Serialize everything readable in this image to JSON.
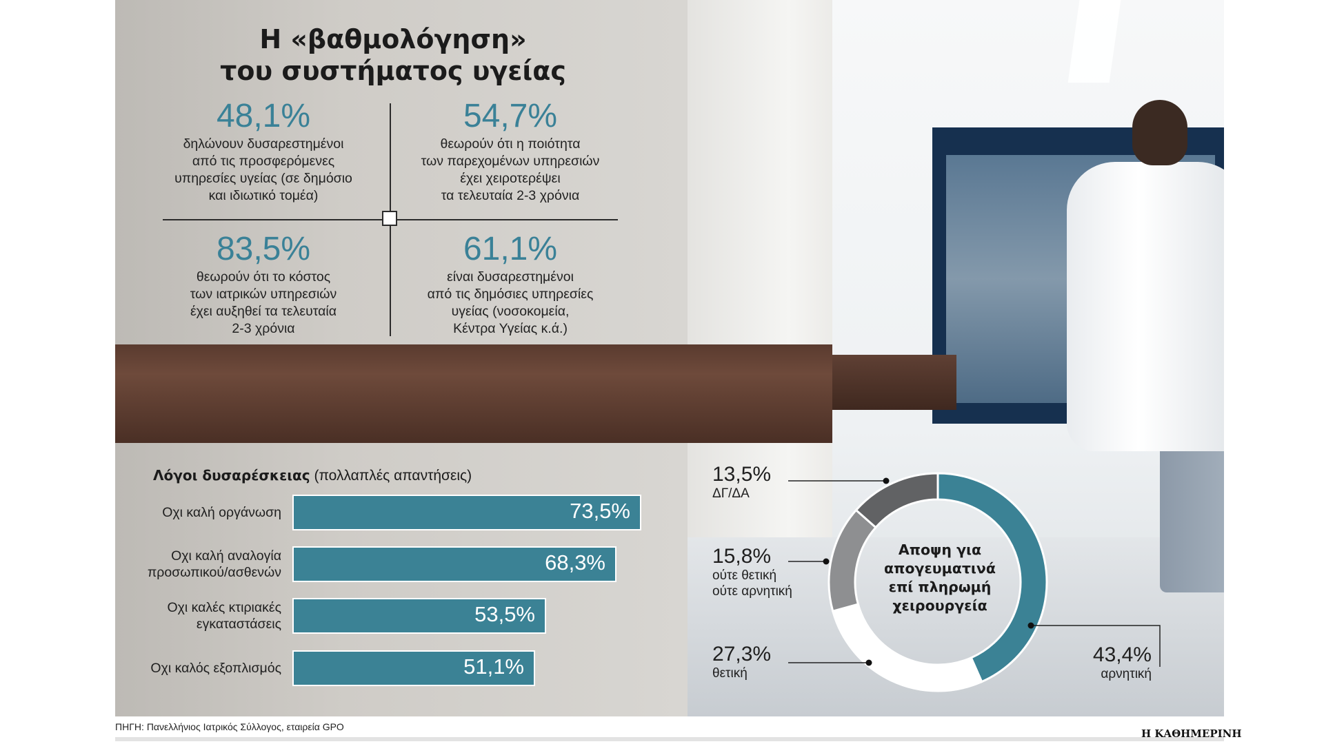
{
  "title": {
    "line1": "Η «βαθμολόγηση»",
    "line2": "του συστήματος υγείας"
  },
  "stats": [
    {
      "value": "48,1%",
      "text": [
        "δηλώνουν δυσαρεστημένοι",
        "από τις προσφερόμενες",
        "υπηρεσίες υγείας (σε δημόσιο",
        "και ιδιωτικό τομέα)"
      ]
    },
    {
      "value": "54,7%",
      "text": [
        "θεωρούν ότι η ποιότητα",
        "των παρεχομένων υπηρεσιών",
        "έχει χειροτερέψει",
        "τα τελευταία 2-3 χρόνια"
      ]
    },
    {
      "value": "83,5%",
      "text": [
        "θεωρούν ότι το κόστος",
        "των ιατρικών υπηρεσιών",
        "έχει αυξηθεί τα τελευταία",
        "2-3 χρόνια"
      ]
    },
    {
      "value": "61,1%",
      "text": [
        "είναι δυσαρεστημένοι",
        "από τις δημόσιες υπηρεσίες",
        "υγείας (νοσοκομεία,",
        "Κέντρα Υγείας κ.ά.)"
      ]
    }
  ],
  "chart_data": [
    {
      "type": "bar",
      "title": "Λόγοι δυσαρέσκειας",
      "subtitle": "(πολλαπλές απαντήσεις)",
      "categories": [
        [
          "Οχι καλή οργάνωση"
        ],
        [
          "Οχι καλή αναλογία",
          "προσωπικού/ασθενών"
        ],
        [
          "Οχι καλές κτιριακές",
          "εγκαταστάσεις"
        ],
        [
          "Οχι καλός εξοπλισμός"
        ]
      ],
      "values": [
        73.5,
        68.3,
        53.5,
        51.1
      ],
      "value_labels": [
        "73,5%",
        "68,3%",
        "53,5%",
        "51,1%"
      ],
      "color": "#3b8295"
    },
    {
      "type": "pie",
      "title": [
        "Αποψη για",
        "απογευματινά",
        "επί πληρωμή",
        "χειρουργεία"
      ],
      "slices": [
        {
          "label": [
            "αρνητική"
          ],
          "value": 43.4,
          "value_label": "43,4%",
          "color": "#3b8295"
        },
        {
          "label": [
            "θετική"
          ],
          "value": 27.3,
          "value_label": "27,3%",
          "color": "#ffffff"
        },
        {
          "label": [
            "ούτε θετική",
            "ούτε αρνητική"
          ],
          "value": 15.8,
          "value_label": "15,8%",
          "color": "#8e8f91"
        },
        {
          "label": [
            "ΔΓ/ΔΑ"
          ],
          "value": 13.5,
          "value_label": "13,5%",
          "color": "#616264"
        }
      ]
    }
  ],
  "source": "ΠΗΓΗ: Πανελλήνιος Ιατρικός Σύλλογος, εταιρεία GPO",
  "brand": "Η ΚΑΘΗΜΕΡΙΝΗ"
}
